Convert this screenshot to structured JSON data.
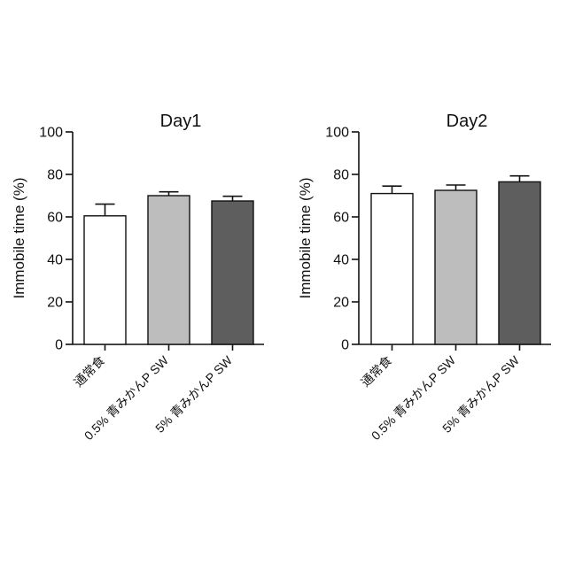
{
  "chart_data": [
    {
      "type": "bar",
      "title": "Day1",
      "ylabel": "Immobile time (%)",
      "xlabel": "",
      "ylim": [
        0,
        100
      ],
      "yticks": [
        0,
        20,
        40,
        60,
        80,
        100
      ],
      "categories": [
        "通常食",
        "0.5% 青みかんP SW",
        "5% 青みかんP SW"
      ],
      "values": [
        60.5,
        70,
        67.5
      ],
      "errors": [
        5.5,
        1.8,
        2.2
      ],
      "colors": [
        "#ffffff",
        "#bdbdbd",
        "#5e5e5e"
      ],
      "grid": false
    },
    {
      "type": "bar",
      "title": "Day2",
      "ylabel": "Immobile time (%)",
      "xlabel": "",
      "ylim": [
        0,
        100
      ],
      "yticks": [
        0,
        20,
        40,
        60,
        80,
        100
      ],
      "categories": [
        "通常食",
        "0.5% 青みかんP SW",
        "5% 青みかんP SW"
      ],
      "values": [
        71,
        72.5,
        76.5
      ],
      "errors": [
        3.5,
        2.5,
        2.8
      ],
      "colors": [
        "#ffffff",
        "#bdbdbd",
        "#5e5e5e"
      ],
      "grid": false
    }
  ]
}
